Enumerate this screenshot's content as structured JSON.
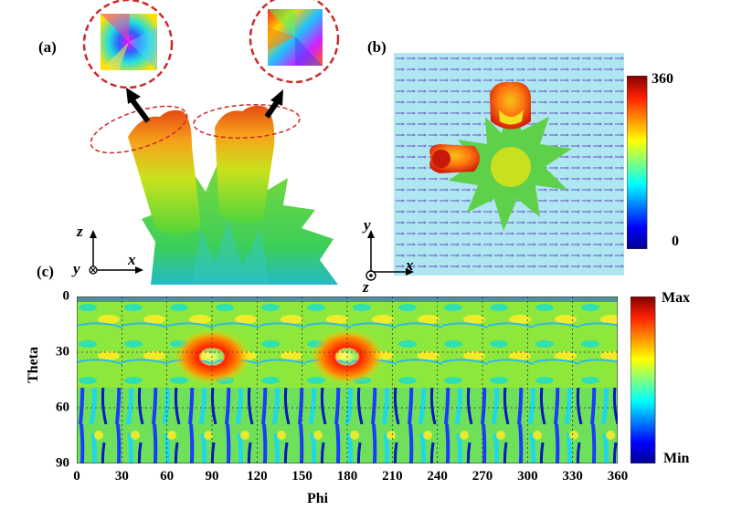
{
  "panels": {
    "a": {
      "label": "(a)"
    },
    "b": {
      "label": "(b)"
    },
    "c": {
      "label": "(c)"
    }
  },
  "axes_a": {
    "z": "z",
    "x": "x",
    "y": "y"
  },
  "axes_b": {
    "y": "y",
    "x": "x",
    "z": "z"
  },
  "colorbar_b": {
    "max": "360",
    "min": "0"
  },
  "colorbar_c": {
    "max": "Max",
    "min": "Min"
  },
  "colors": {
    "inset_ring": "#cc2a2a",
    "panel_b_bg": "#aee6f2",
    "arrow_marks": "#7d7fd0",
    "colormap": [
      "#00008f",
      "#0000ff",
      "#00ffff",
      "#7fff7f",
      "#ffff00",
      "#ff7f00",
      "#ff0000",
      "#800000"
    ]
  },
  "chart_data": {
    "type": "heatmap",
    "xlabel": "Phi",
    "ylabel": "Theta",
    "x_ticks": [
      "0",
      "30",
      "60",
      "90",
      "120",
      "150",
      "180",
      "210",
      "240",
      "270",
      "300",
      "330",
      "360"
    ],
    "y_ticks": [
      "0",
      "30",
      "60",
      "90"
    ],
    "xlim": [
      0,
      360
    ],
    "ylim": [
      0,
      90
    ],
    "grid": true,
    "hotspots": [
      {
        "phi": 90,
        "theta": 33
      },
      {
        "phi": 180,
        "theta": 33
      }
    ],
    "colorbar_labels": [
      "Max",
      "Min"
    ]
  }
}
